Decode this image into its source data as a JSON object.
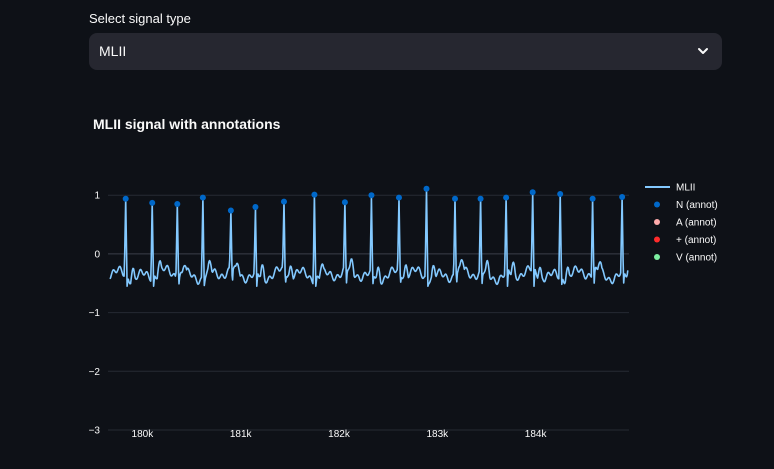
{
  "select": {
    "label": "Select signal type",
    "value": "MLII",
    "icon": "chevron-down-icon"
  },
  "chart_data": {
    "type": "line",
    "title": "MLII signal with annotations",
    "xlabel": "",
    "ylabel": "",
    "xlim": [
      179650,
      184950
    ],
    "ylim": [
      -3,
      1.6
    ],
    "x_ticks": [
      180000,
      181000,
      182000,
      183000,
      184000
    ],
    "x_tick_labels": [
      "180k",
      "181k",
      "182k",
      "183k",
      "184k"
    ],
    "y_ticks": [
      1,
      0,
      -1,
      -2,
      -3
    ],
    "y_tick_labels": [
      "1",
      "0",
      "−1",
      "−2",
      "−3"
    ],
    "grid": true,
    "legend_position": "right",
    "baseline": -0.35,
    "series": [
      {
        "name": "MLII",
        "kind": "line",
        "color": "#83c9ff"
      },
      {
        "name": "N (annot)",
        "kind": "markers",
        "color": "#0068c9",
        "x": [
          179830,
          180100,
          180355,
          180615,
          180900,
          181150,
          181440,
          181750,
          182060,
          182330,
          182610,
          182890,
          183180,
          183440,
          183700,
          183970,
          184250,
          184580,
          184880
        ],
        "y": [
          0.94,
          0.87,
          0.85,
          0.96,
          0.74,
          0.8,
          0.89,
          1.01,
          0.88,
          1.0,
          0.96,
          1.11,
          0.94,
          0.94,
          0.96,
          1.05,
          1.02,
          0.94,
          0.97
        ]
      },
      {
        "name": "A (annot)",
        "kind": "markers",
        "color": "#ffabab",
        "x": [],
        "y": []
      },
      {
        "name": "+ (annot)",
        "kind": "markers",
        "color": "#ff2b2b",
        "x": [],
        "y": []
      },
      {
        "name": "V (annot)",
        "kind": "markers",
        "color": "#7defa1",
        "x": [],
        "y": []
      }
    ]
  }
}
